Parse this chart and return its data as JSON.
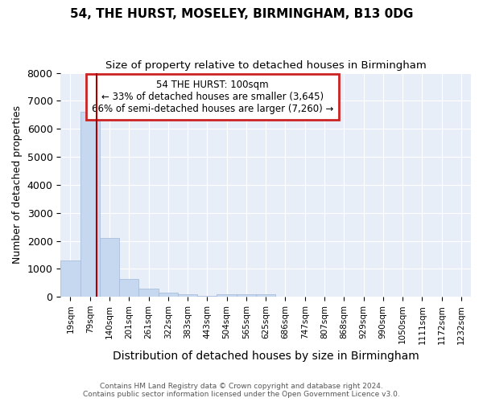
{
  "title": "54, THE HURST, MOSELEY, BIRMINGHAM, B13 0DG",
  "subtitle": "Size of property relative to detached houses in Birmingham",
  "xlabel": "Distribution of detached houses by size in Birmingham",
  "ylabel": "Number of detached properties",
  "footer_line1": "Contains HM Land Registry data © Crown copyright and database right 2024.",
  "footer_line2": "Contains public sector information licensed under the Open Government Licence v3.0.",
  "annotation_line1": "54 THE HURST: 100sqm",
  "annotation_line2": "← 33% of detached houses are smaller (3,645)",
  "annotation_line3": "66% of semi-detached houses are larger (7,260) →",
  "categories": [
    "19sqm",
    "79sqm",
    "140sqm",
    "201sqm",
    "261sqm",
    "322sqm",
    "383sqm",
    "443sqm",
    "504sqm",
    "565sqm",
    "625sqm",
    "686sqm",
    "747sqm",
    "807sqm",
    "868sqm",
    "929sqm",
    "990sqm",
    "1050sqm",
    "1111sqm",
    "1172sqm",
    "1232sqm"
  ],
  "values": [
    1300,
    6600,
    2100,
    650,
    300,
    150,
    80,
    20,
    80,
    80,
    80,
    0,
    0,
    0,
    0,
    0,
    0,
    0,
    0,
    0,
    0
  ],
  "bar_color": "#c5d8f0",
  "bar_edge_color": "#a0b8d8",
  "red_line_x": 1.33,
  "red_line_color": "#aa0000",
  "annotation_box_edge_color": "#cc2222",
  "ylim": [
    0,
    8000
  ],
  "yticks": [
    0,
    1000,
    2000,
    3000,
    4000,
    5000,
    6000,
    7000,
    8000
  ],
  "bg_color": "#ffffff",
  "plot_bg_color": "#e8eef8",
  "grid_color": "#ffffff",
  "title_fontsize": 11,
  "subtitle_fontsize": 9.5,
  "ylabel_fontsize": 9,
  "xlabel_fontsize": 10
}
